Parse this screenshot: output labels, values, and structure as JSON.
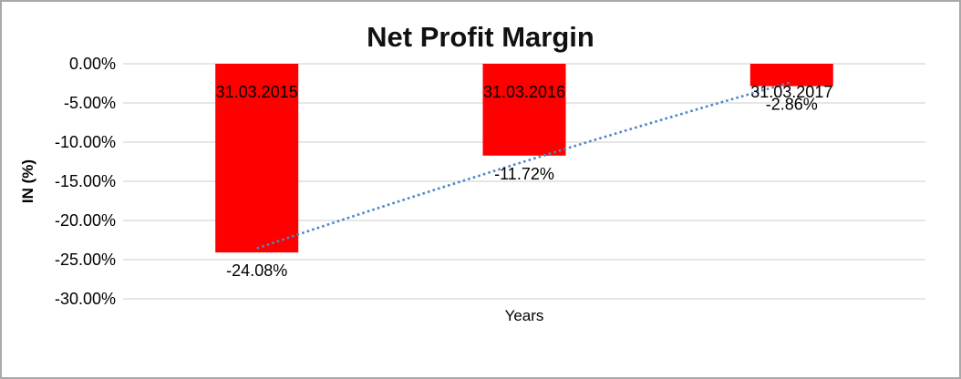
{
  "chart_data": {
    "type": "bar",
    "title": "Net Profit Margin",
    "xlabel": "Years",
    "ylabel": "IN (%)",
    "categories": [
      "31.03.2015",
      "31.03.2016",
      "31.03.2017"
    ],
    "values": [
      -24.08,
      -11.72,
      -2.86
    ],
    "value_labels": [
      "-24.08%",
      "-11.72%",
      "-2.86%"
    ],
    "ylim": [
      -30,
      0
    ],
    "yticks": [
      0,
      -5,
      -10,
      -15,
      -20,
      -25,
      -30
    ],
    "ytick_labels": [
      "0.00%",
      "-5.00%",
      "-10.00%",
      "-15.00%",
      "-20.00%",
      "-25.00%",
      "-30.00%"
    ],
    "grid": true,
    "legend": "none",
    "colors": {
      "bar": "#FF0000",
      "trendline": "#4F86C6",
      "gridline": "#D6D6D6",
      "text": "#000000",
      "frame_border": "#A9A9A9"
    },
    "trendline": {
      "style": "dotted",
      "from_category": "31.03.2015",
      "to_category": "31.03.2017"
    }
  }
}
